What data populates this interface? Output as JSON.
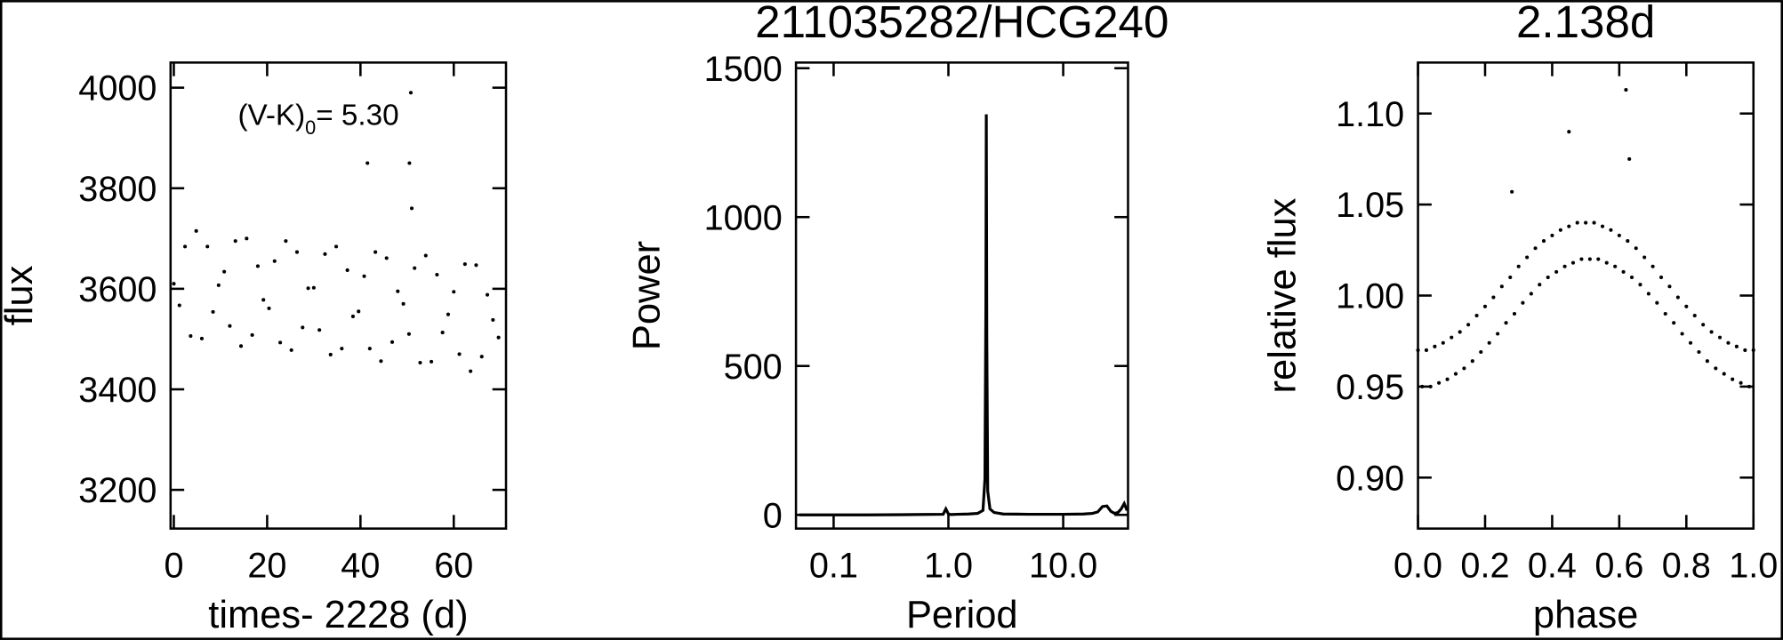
{
  "chart_data": [
    {
      "type": "scatter",
      "xlabel": "times- 2228 (d)",
      "ylabel": "flux",
      "color": "#000000",
      "annotation": {
        "main": "(V-K)",
        "sub": "0",
        "rest": "= 5.30"
      },
      "xlim": [
        -0.7,
        71.2
      ],
      "ylim": [
        3123,
        4050
      ],
      "xticks": [
        0,
        20,
        40,
        60
      ],
      "yticks": [
        3200,
        3400,
        3600,
        3800,
        4000
      ],
      "x": [
        0,
        1.2,
        2.4,
        3.6,
        4.8,
        6.0,
        7.2,
        8.4,
        9.6,
        10.8,
        12.0,
        13.2,
        14.4,
        15.6,
        16.8,
        18.0,
        19.2,
        20.4,
        21.6,
        22.8,
        24.0,
        25.2,
        26.4,
        27.6,
        28.8,
        30.0,
        31.2,
        32.4,
        33.6,
        34.8,
        36.0,
        37.2,
        38.4,
        39.6,
        40.8,
        42.0,
        43.2,
        44.4,
        45.6,
        46.8,
        48.0,
        49.2,
        50.4,
        51.6,
        52.8,
        54.0,
        55.2,
        56.4,
        57.6,
        58.8,
        60.0,
        61.2,
        62.4,
        63.6,
        64.8,
        66.0,
        67.2,
        68.4,
        69.6,
        41.5,
        50.5,
        50.8,
        51.0
      ],
      "values": [
        3610,
        3567,
        3684,
        3506,
        3715,
        3501,
        3684,
        3554,
        3607,
        3634,
        3526,
        3695,
        3486,
        3700,
        3508,
        3645,
        3578,
        3561,
        3655,
        3493,
        3695,
        3478,
        3673,
        3523,
        3601,
        3602,
        3518,
        3669,
        3469,
        3684,
        3481,
        3637,
        3545,
        3555,
        3625,
        3481,
        3673,
        3456,
        3661,
        3494,
        3595,
        3570,
        3510,
        3641,
        3453,
        3666,
        3455,
        3628,
        3513,
        3549,
        3594,
        3470,
        3649,
        3436,
        3647,
        3465,
        3588,
        3538,
        3503,
        3850,
        3850,
        3990,
        3760
      ]
    },
    {
      "type": "line",
      "title": "211035282/HCG240",
      "xlabel": "Period",
      "ylabel": "Power",
      "color": "#000000",
      "xscale": "log",
      "xlim": [
        0.047,
        36.7
      ],
      "ylim": [
        -46,
        1519
      ],
      "xticks": [
        0.1,
        {
          "value": 1,
          "label": "1.0"
        },
        {
          "value": 10,
          "label": "10.0"
        }
      ],
      "yticks": [
        0,
        500,
        1000,
        1500
      ],
      "x": [
        0.05,
        0.1,
        0.2,
        0.5,
        0.9,
        0.95,
        1.0,
        1.05,
        1.2,
        1.5,
        1.8,
        2.0,
        2.08,
        2.12,
        2.138,
        2.16,
        2.2,
        2.3,
        2.5,
        3,
        5,
        10,
        15,
        18,
        20,
        22,
        24,
        26,
        28,
        30,
        32,
        34,
        36
      ],
      "values": [
        0,
        0,
        0,
        1,
        2,
        20,
        3,
        1,
        2,
        3,
        5,
        15,
        120,
        700,
        1345,
        600,
        80,
        20,
        8,
        3,
        2,
        2,
        3,
        5,
        10,
        28,
        30,
        12,
        5,
        8,
        20,
        38,
        15
      ]
    },
    {
      "type": "scatter",
      "title": "2.138d",
      "xlabel": "phase",
      "ylabel": "relative flux",
      "color": "#000000",
      "xlim": [
        0,
        1
      ],
      "ylim": [
        0.872,
        1.128
      ],
      "xticks": [
        {
          "value": 0,
          "label": "0.0"
        },
        0.2,
        0.4,
        0.6,
        0.8,
        {
          "value": 1,
          "label": "1.0"
        }
      ],
      "yticks": [
        {
          "value": 0.9,
          "label": "0.90"
        },
        0.95,
        {
          "value": 1,
          "label": "1.00"
        },
        1.05,
        {
          "value": 1.1,
          "label": "1.10"
        }
      ],
      "x": [
        0,
        0.025,
        0.05,
        0.075,
        0.1,
        0.125,
        0.15,
        0.175,
        0.2,
        0.225,
        0.25,
        0.275,
        0.3,
        0.325,
        0.35,
        0.375,
        0.4,
        0.425,
        0.45,
        0.475,
        0.5,
        0.525,
        0.55,
        0.575,
        0.6,
        0.625,
        0.65,
        0.675,
        0.7,
        0.725,
        0.75,
        0.775,
        0.8,
        0.825,
        0.85,
        0.875,
        0.9,
        0.925,
        0.95,
        0.975,
        1.0,
        0.0125,
        0.0375,
        0.0625,
        0.0875,
        0.1125,
        0.1375,
        0.1625,
        0.1875,
        0.2125,
        0.2375,
        0.2625,
        0.2875,
        0.3125,
        0.3375,
        0.3625,
        0.3875,
        0.4125,
        0.4375,
        0.4625,
        0.4875,
        0.5125,
        0.5375,
        0.5625,
        0.5875,
        0.6125,
        0.6375,
        0.6625,
        0.6875,
        0.7125,
        0.7375,
        0.7625,
        0.7875,
        0.8125,
        0.8375,
        0.8625,
        0.8875,
        0.9125,
        0.9375,
        0.9625,
        0.9875,
        0.45,
        0.62,
        0.63,
        0.28
      ],
      "values": [
        0.97,
        0.97,
        0.972,
        0.974,
        0.977,
        0.98,
        0.984,
        0.989,
        0.994,
        0.999,
        1.005,
        1.01,
        1.016,
        1.021,
        1.026,
        1.03,
        1.033,
        1.036,
        1.038,
        1.04,
        1.04,
        1.04,
        1.038,
        1.036,
        1.033,
        1.03,
        1.026,
        1.021,
        1.016,
        1.01,
        1.005,
        0.999,
        0.994,
        0.989,
        0.984,
        0.98,
        0.977,
        0.974,
        0.972,
        0.97,
        0.97,
        0.95,
        0.95,
        0.952,
        0.954,
        0.957,
        0.96,
        0.964,
        0.969,
        0.974,
        0.979,
        0.985,
        0.99,
        0.996,
        1.001,
        1.006,
        1.01,
        1.013,
        1.016,
        1.018,
        1.02,
        1.02,
        1.02,
        1.018,
        1.016,
        1.013,
        1.01,
        1.006,
        1.001,
        0.996,
        0.99,
        0.985,
        0.979,
        0.974,
        0.969,
        0.964,
        0.96,
        0.957,
        0.954,
        0.952,
        0.95,
        1.09,
        1.113,
        1.075,
        1.057
      ]
    }
  ]
}
